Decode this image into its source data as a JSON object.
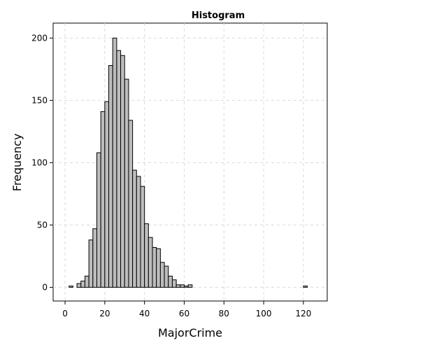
{
  "chart_data": {
    "type": "bar",
    "title": "Histogram",
    "xlabel": "MajorCrime",
    "ylabel": "Frequency",
    "xlim": [
      -6,
      132
    ],
    "ylim": [
      -11,
      212
    ],
    "x_ticks": [
      0,
      20,
      40,
      60,
      80,
      100,
      120
    ],
    "y_ticks": [
      0,
      50,
      100,
      150,
      200
    ],
    "grid": true,
    "legend": "none",
    "bar_color": "#bdbdbd",
    "bar_edge_color": "#000000",
    "bin_width": 2,
    "bins": [
      {
        "start": 2,
        "count": 1
      },
      {
        "start": 6,
        "count": 3
      },
      {
        "start": 8,
        "count": 5
      },
      {
        "start": 10,
        "count": 9
      },
      {
        "start": 12,
        "count": 38
      },
      {
        "start": 14,
        "count": 47
      },
      {
        "start": 16,
        "count": 108
      },
      {
        "start": 18,
        "count": 141
      },
      {
        "start": 20,
        "count": 149
      },
      {
        "start": 22,
        "count": 178
      },
      {
        "start": 24,
        "count": 200
      },
      {
        "start": 26,
        "count": 190
      },
      {
        "start": 28,
        "count": 186
      },
      {
        "start": 30,
        "count": 167
      },
      {
        "start": 32,
        "count": 134
      },
      {
        "start": 34,
        "count": 94
      },
      {
        "start": 36,
        "count": 89
      },
      {
        "start": 38,
        "count": 81
      },
      {
        "start": 40,
        "count": 51
      },
      {
        "start": 42,
        "count": 40
      },
      {
        "start": 44,
        "count": 32
      },
      {
        "start": 46,
        "count": 31
      },
      {
        "start": 48,
        "count": 20
      },
      {
        "start": 50,
        "count": 17
      },
      {
        "start": 52,
        "count": 9
      },
      {
        "start": 54,
        "count": 6
      },
      {
        "start": 56,
        "count": 2
      },
      {
        "start": 58,
        "count": 2
      },
      {
        "start": 60,
        "count": 1
      },
      {
        "start": 62,
        "count": 2
      },
      {
        "start": 120,
        "count": 1
      }
    ]
  }
}
